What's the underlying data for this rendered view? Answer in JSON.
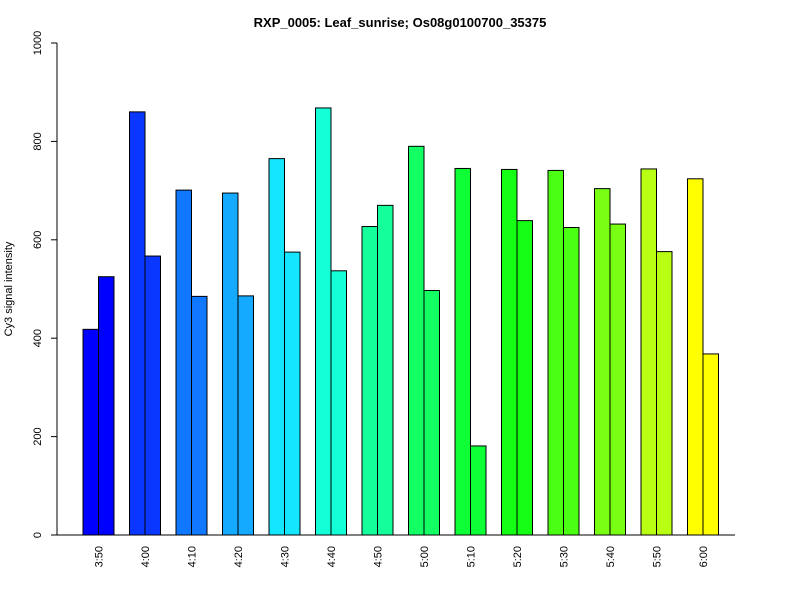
{
  "chart_data": {
    "type": "bar",
    "title": "RXP_0005: Leaf_sunrise; Os08g0100700_35375",
    "xlabel": "",
    "ylabel": "Cy3 signal intensity",
    "ylim": [
      0,
      1000
    ],
    "yticks": [
      "0",
      "200",
      "400",
      "600",
      "800",
      "1000"
    ],
    "grid": false,
    "legend": "none",
    "categories": [
      "3:50",
      "4:00",
      "4:10",
      "4:20",
      "4:30",
      "4:40",
      "4:50",
      "5:00",
      "5:10",
      "5:20",
      "5:30",
      "5:40",
      "5:50",
      "6:00"
    ],
    "colors": [
      "#0000FF",
      "#0A37FF",
      "#0F78FF",
      "#14AAFF",
      "#14E6FF",
      "#14FFD7",
      "#14FF9B",
      "#14FF64",
      "#0FFF37",
      "#14FF14",
      "#4BFF14",
      "#78FF14",
      "#B9FF14",
      "#FFFF00"
    ],
    "series": [
      {
        "values": [
          418,
          860,
          701,
          695,
          765,
          868,
          627,
          790,
          745,
          743,
          741,
          704,
          744,
          724
        ]
      },
      {
        "values": [
          525,
          567,
          485,
          486,
          575,
          537,
          670,
          497,
          181,
          639,
          625,
          632,
          576,
          368
        ]
      }
    ]
  }
}
